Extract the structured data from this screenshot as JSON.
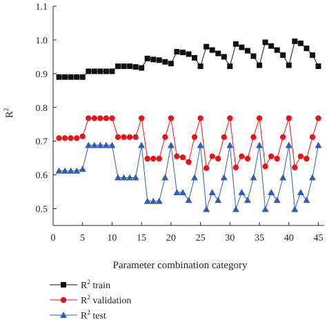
{
  "chart_data": {
    "type": "line",
    "ylabel": "R",
    "ylabel_sup": "2",
    "xlabel": "Parameter combination category",
    "xlim": [
      0,
      46
    ],
    "ylim": [
      0.45,
      1.1
    ],
    "xticks": [
      0,
      5,
      10,
      15,
      20,
      25,
      30,
      35,
      40,
      45
    ],
    "xtick_labels": [
      "0",
      "5",
      "10",
      "15",
      "20",
      "25",
      "30",
      "35",
      "40",
      "45"
    ],
    "yticks": [
      0.5,
      0.6,
      0.7,
      0.8,
      0.9,
      1.0,
      1.1
    ],
    "ytick_labels": [
      "0.5",
      "0.6",
      "0.7",
      "0.8",
      "0.9",
      "1.0",
      "1.1"
    ],
    "grid": false,
    "legend": "bottom-left below plot",
    "series": [
      {
        "name_prefix": "R",
        "name_sup": "2",
        "name_suffix": " train",
        "color": "#111111",
        "marker": "square",
        "x": [
          1,
          2,
          3,
          4,
          5,
          6,
          7,
          8,
          9,
          10,
          11,
          12,
          13,
          14,
          15,
          16,
          17,
          18,
          19,
          20,
          21,
          22,
          23,
          24,
          25,
          26,
          27,
          28,
          29,
          30,
          31,
          32,
          33,
          34,
          35,
          36,
          37,
          38,
          39,
          40,
          41,
          42,
          43,
          44,
          45
        ],
        "values": [
          0.89,
          0.89,
          0.89,
          0.89,
          0.89,
          0.907,
          0.907,
          0.907,
          0.907,
          0.907,
          0.922,
          0.922,
          0.922,
          0.92,
          0.917,
          0.945,
          0.942,
          0.94,
          0.935,
          0.93,
          0.965,
          0.963,
          0.958,
          0.947,
          0.922,
          0.98,
          0.97,
          0.96,
          0.95,
          0.922,
          0.988,
          0.978,
          0.968,
          0.952,
          0.925,
          0.993,
          0.982,
          0.97,
          0.955,
          0.925,
          0.996,
          0.99,
          0.975,
          0.955,
          0.922
        ]
      },
      {
        "name_prefix": "R",
        "name_sup": "2",
        "name_suffix": " validation",
        "color": "#e8141a",
        "marker": "circle",
        "x": [
          1,
          2,
          3,
          4,
          5,
          6,
          7,
          8,
          9,
          10,
          11,
          12,
          13,
          14,
          15,
          16,
          17,
          18,
          19,
          20,
          21,
          22,
          23,
          24,
          25,
          26,
          27,
          28,
          29,
          30,
          31,
          32,
          33,
          34,
          35,
          36,
          37,
          38,
          39,
          40,
          41,
          42,
          43,
          44,
          45
        ],
        "values": [
          0.709,
          0.709,
          0.709,
          0.709,
          0.714,
          0.768,
          0.768,
          0.768,
          0.768,
          0.768,
          0.712,
          0.712,
          0.712,
          0.712,
          0.768,
          0.648,
          0.648,
          0.648,
          0.712,
          0.768,
          0.655,
          0.652,
          0.638,
          0.712,
          0.768,
          0.62,
          0.655,
          0.648,
          0.712,
          0.768,
          0.622,
          0.655,
          0.648,
          0.712,
          0.768,
          0.625,
          0.655,
          0.648,
          0.712,
          0.768,
          0.622,
          0.655,
          0.648,
          0.712,
          0.768
        ]
      },
      {
        "name_prefix": "R",
        "name_sup": "2",
        "name_suffix": " test",
        "color": "#2e5cb8",
        "marker": "triangle",
        "x": [
          1,
          2,
          3,
          4,
          5,
          6,
          7,
          8,
          9,
          10,
          11,
          12,
          13,
          14,
          15,
          16,
          17,
          18,
          19,
          20,
          21,
          22,
          23,
          24,
          25,
          26,
          27,
          28,
          29,
          30,
          31,
          32,
          33,
          34,
          35,
          36,
          37,
          38,
          39,
          40,
          41,
          42,
          43,
          44,
          45
        ],
        "values": [
          0.612,
          0.612,
          0.612,
          0.612,
          0.617,
          0.688,
          0.688,
          0.688,
          0.688,
          0.688,
          0.592,
          0.592,
          0.592,
          0.592,
          0.688,
          0.522,
          0.522,
          0.522,
          0.592,
          0.688,
          0.548,
          0.548,
          0.525,
          0.592,
          0.688,
          0.498,
          0.548,
          0.525,
          0.592,
          0.688,
          0.498,
          0.548,
          0.525,
          0.592,
          0.688,
          0.498,
          0.548,
          0.525,
          0.592,
          0.688,
          0.498,
          0.548,
          0.525,
          0.592,
          0.688
        ]
      }
    ]
  }
}
